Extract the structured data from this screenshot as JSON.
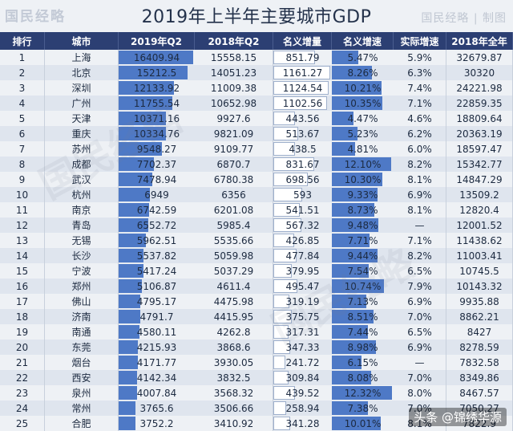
{
  "header": {
    "title": "2019年上半年主要城市GDP",
    "wm_left": "国民经略",
    "wm_right": "国民经略 | 制图"
  },
  "footer": {
    "watermark": "头条 @锦绣华源"
  },
  "bg_watermark": "国民经略",
  "columns": [
    "排行",
    "城市",
    "2019年Q2",
    "2018年Q2",
    "名义增量",
    "名义增速",
    "实际增速",
    "2018年全年"
  ],
  "chart_data": {
    "type": "table",
    "title": "2019年上半年主要城市GDP",
    "rows": [
      {
        "rank": "1",
        "city": "上海",
        "q2_2019": "16409.94",
        "q2_2018": "15558.15",
        "nominal_increase": "851.79",
        "nominal_growth": "5.47%",
        "real_growth": "5.9%",
        "full_2018": "32679.87"
      },
      {
        "rank": "2",
        "city": "北京",
        "q2_2019": "15212.5",
        "q2_2018": "14051.23",
        "nominal_increase": "1161.27",
        "nominal_growth": "8.26%",
        "real_growth": "6.3%",
        "full_2018": "30320"
      },
      {
        "rank": "3",
        "city": "深圳",
        "q2_2019": "12133.92",
        "q2_2018": "11009.38",
        "nominal_increase": "1124.54",
        "nominal_growth": "10.21%",
        "real_growth": "7.4%",
        "full_2018": "24221.98"
      },
      {
        "rank": "4",
        "city": "广州",
        "q2_2019": "11755.54",
        "q2_2018": "10652.98",
        "nominal_increase": "1102.56",
        "nominal_growth": "10.35%",
        "real_growth": "7.1%",
        "full_2018": "22859.35"
      },
      {
        "rank": "5",
        "city": "天津",
        "q2_2019": "10371.16",
        "q2_2018": "9927.6",
        "nominal_increase": "443.56",
        "nominal_growth": "4.47%",
        "real_growth": "4.6%",
        "full_2018": "18809.64"
      },
      {
        "rank": "6",
        "city": "重庆",
        "q2_2019": "10334.76",
        "q2_2018": "9821.09",
        "nominal_increase": "513.67",
        "nominal_growth": "5.23%",
        "real_growth": "6.2%",
        "full_2018": "20363.19"
      },
      {
        "rank": "7",
        "city": "苏州",
        "q2_2019": "9548.27",
        "q2_2018": "9109.77",
        "nominal_increase": "438.5",
        "nominal_growth": "4.81%",
        "real_growth": "6.0%",
        "full_2018": "18597.47"
      },
      {
        "rank": "8",
        "city": "成都",
        "q2_2019": "7702.37",
        "q2_2018": "6870.7",
        "nominal_increase": "831.67",
        "nominal_growth": "12.10%",
        "real_growth": "8.2%",
        "full_2018": "15342.77"
      },
      {
        "rank": "9",
        "city": "武汉",
        "q2_2019": "7478.94",
        "q2_2018": "6780.38",
        "nominal_increase": "698.56",
        "nominal_growth": "10.30%",
        "real_growth": "8.1%",
        "full_2018": "14847.29"
      },
      {
        "rank": "10",
        "city": "杭州",
        "q2_2019": "6949",
        "q2_2018": "6356",
        "nominal_increase": "593",
        "nominal_growth": "9.33%",
        "real_growth": "6.9%",
        "full_2018": "13509.2"
      },
      {
        "rank": "11",
        "city": "南京",
        "q2_2019": "6742.59",
        "q2_2018": "6201.08",
        "nominal_increase": "541.51",
        "nominal_growth": "8.73%",
        "real_growth": "8.1%",
        "full_2018": "12820.4"
      },
      {
        "rank": "12",
        "city": "青岛",
        "q2_2019": "6552.72",
        "q2_2018": "5985.4",
        "nominal_increase": "567.32",
        "nominal_growth": "9.48%",
        "real_growth": "—",
        "full_2018": "12001.52"
      },
      {
        "rank": "13",
        "city": "无锡",
        "q2_2019": "5962.51",
        "q2_2018": "5535.66",
        "nominal_increase": "426.85",
        "nominal_growth": "7.71%",
        "real_growth": "7.1%",
        "full_2018": "11438.62"
      },
      {
        "rank": "14",
        "city": "长沙",
        "q2_2019": "5537.82",
        "q2_2018": "5059.98",
        "nominal_increase": "477.84",
        "nominal_growth": "9.44%",
        "real_growth": "8.2%",
        "full_2018": "11003.41"
      },
      {
        "rank": "15",
        "city": "宁波",
        "q2_2019": "5417.24",
        "q2_2018": "5037.29",
        "nominal_increase": "379.95",
        "nominal_growth": "7.54%",
        "real_growth": "6.5%",
        "full_2018": "10745.5"
      },
      {
        "rank": "16",
        "city": "郑州",
        "q2_2019": "5106.87",
        "q2_2018": "4611.4",
        "nominal_increase": "495.47",
        "nominal_growth": "10.74%",
        "real_growth": "7.9%",
        "full_2018": "10143.32"
      },
      {
        "rank": "17",
        "city": "佛山",
        "q2_2019": "4795.17",
        "q2_2018": "4475.98",
        "nominal_increase": "319.19",
        "nominal_growth": "7.13%",
        "real_growth": "6.9%",
        "full_2018": "9935.88"
      },
      {
        "rank": "18",
        "city": "济南",
        "q2_2019": "4791.7",
        "q2_2018": "4415.95",
        "nominal_increase": "375.75",
        "nominal_growth": "8.51%",
        "real_growth": "7.0%",
        "full_2018": "8862.21"
      },
      {
        "rank": "19",
        "city": "南通",
        "q2_2019": "4580.11",
        "q2_2018": "4262.8",
        "nominal_increase": "317.31",
        "nominal_growth": "7.44%",
        "real_growth": "6.5%",
        "full_2018": "8427"
      },
      {
        "rank": "20",
        "city": "东莞",
        "q2_2019": "4215.93",
        "q2_2018": "3868.6",
        "nominal_increase": "347.33",
        "nominal_growth": "8.98%",
        "real_growth": "6.9%",
        "full_2018": "8278.59"
      },
      {
        "rank": "21",
        "city": "烟台",
        "q2_2019": "4171.77",
        "q2_2018": "3930.05",
        "nominal_increase": "241.72",
        "nominal_growth": "6.15%",
        "real_growth": "—",
        "full_2018": "7832.58"
      },
      {
        "rank": "22",
        "city": "西安",
        "q2_2019": "4142.34",
        "q2_2018": "3832.5",
        "nominal_increase": "309.84",
        "nominal_growth": "8.08%",
        "real_growth": "7.0%",
        "full_2018": "8349.86"
      },
      {
        "rank": "23",
        "city": "泉州",
        "q2_2019": "4007.84",
        "q2_2018": "3568.32",
        "nominal_increase": "439.52",
        "nominal_growth": "12.32%",
        "real_growth": "8.0%",
        "full_2018": "8467.57"
      },
      {
        "rank": "24",
        "city": "常州",
        "q2_2019": "3765.6",
        "q2_2018": "3506.66",
        "nominal_increase": "258.94",
        "nominal_growth": "7.38%",
        "real_growth": "7.0%",
        "full_2018": "7050.27"
      },
      {
        "rank": "25",
        "city": "合肥",
        "q2_2019": "3752.2",
        "q2_2018": "3410.92",
        "nominal_increase": "341.28",
        "nominal_growth": "10.01%",
        "real_growth": "8.1%",
        "full_2018": "7822.9"
      }
    ]
  },
  "colors": {
    "header_bg": "#2c3f73",
    "bar": "#4e79c6",
    "row_odd": "#eef1f5",
    "row_even": "#dfe5ee"
  }
}
